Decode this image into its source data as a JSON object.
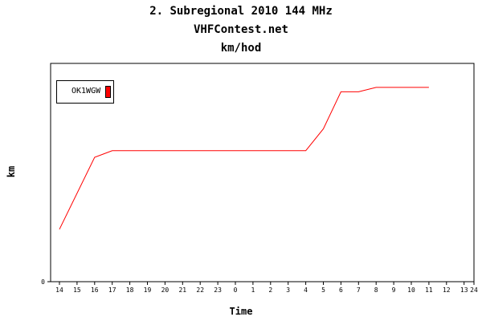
{
  "chart_data": {
    "type": "line",
    "title": "2. Subregional 2010 144 MHz",
    "subtitle": "VHFContest.net",
    "subtitle2": "km/hod",
    "xlabel": "Time",
    "ylabel": "km",
    "x_ticks": [
      "14",
      "15",
      "16",
      "17",
      "18",
      "19",
      "20",
      "21",
      "22",
      "23",
      "0",
      "1",
      "2",
      "3",
      "4",
      "5",
      "6",
      "7",
      "8",
      "9",
      "10",
      "11",
      "12",
      "13",
      "24"
    ],
    "y_ticks": [
      "0"
    ],
    "ylim": [
      0,
      100
    ],
    "grid": false,
    "legend_position": "top-left",
    "series": [
      {
        "name": "OK1WGW",
        "color": "#ff0000",
        "x": [
          "14",
          "16",
          "17",
          "18",
          "19",
          "20",
          "21",
          "22",
          "23",
          "0",
          "1",
          "2",
          "3",
          "4",
          "5",
          "6",
          "7",
          "8",
          "9",
          "10",
          "11"
        ],
        "values": [
          24,
          57,
          60,
          60,
          60,
          60,
          60,
          60,
          60,
          60,
          60,
          60,
          60,
          60,
          70,
          87,
          87,
          89,
          89,
          89,
          89
        ]
      }
    ]
  }
}
